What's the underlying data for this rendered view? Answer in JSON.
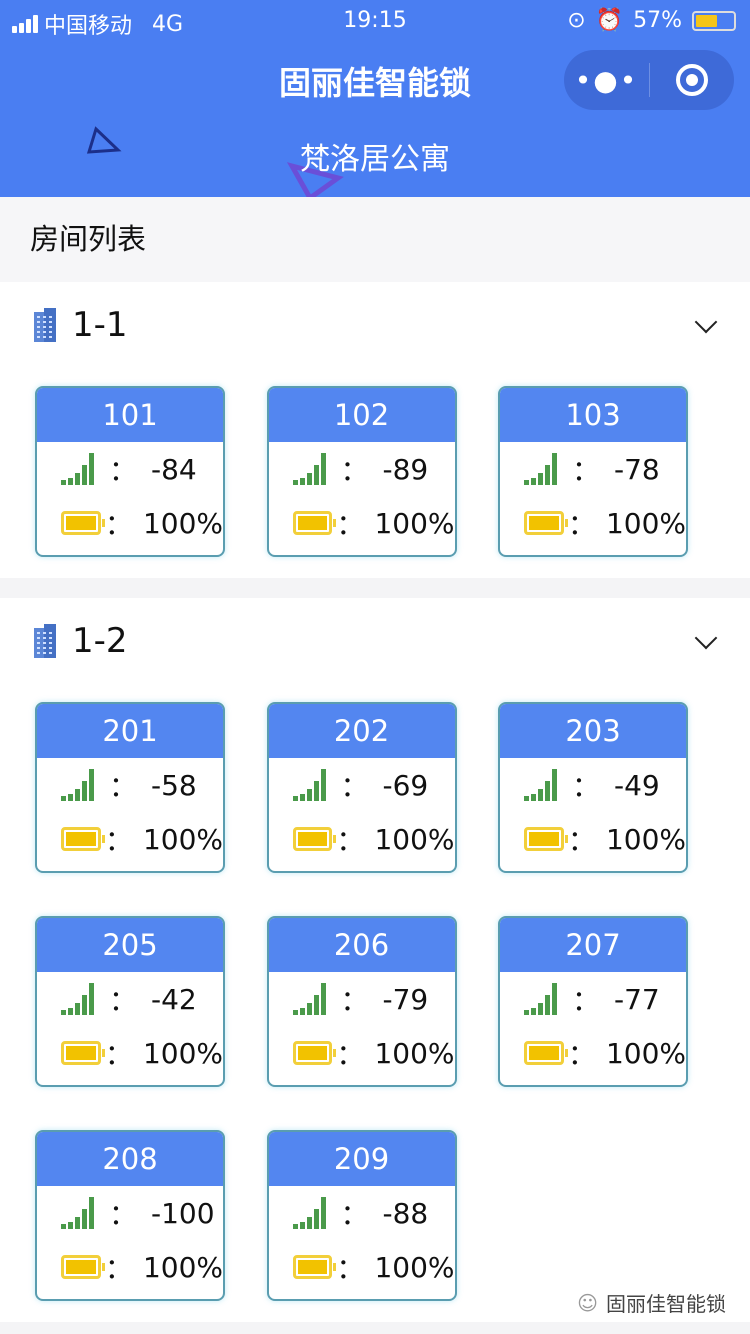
{
  "status_bar": {
    "carrier": "中国移动",
    "network": "4G",
    "time": "19:15",
    "battery": "57%",
    "battery_level": 0.57
  },
  "header": {
    "title": "固丽佳智能锁",
    "subtitle": "梵洛居公寓",
    "menu_icon": "more-dots-icon",
    "close_icon": "target-circle-icon",
    "color": "#4a7ef2"
  },
  "list_title": "房间列表",
  "groups": [
    {
      "name": "1-1",
      "rooms": [
        {
          "number": "101",
          "signal": "-84",
          "battery": "100%"
        },
        {
          "number": "102",
          "signal": "-89",
          "battery": "100%"
        },
        {
          "number": "103",
          "signal": "-78",
          "battery": "100%"
        }
      ]
    },
    {
      "name": "1-2",
      "rooms": [
        {
          "number": "201",
          "signal": "-58",
          "battery": "100%"
        },
        {
          "number": "202",
          "signal": "-69",
          "battery": "100%"
        },
        {
          "number": "203",
          "signal": "-49",
          "battery": "100%"
        },
        {
          "number": "205",
          "signal": "-42",
          "battery": "100%"
        },
        {
          "number": "206",
          "signal": "-79",
          "battery": "100%"
        },
        {
          "number": "207",
          "signal": "-77",
          "battery": "100%"
        },
        {
          "number": "208",
          "signal": "-100",
          "battery": "100%"
        },
        {
          "number": "209",
          "signal": "-88",
          "battery": "100%"
        }
      ]
    }
  ],
  "colon": "：",
  "watermark": "固丽佳智能锁"
}
